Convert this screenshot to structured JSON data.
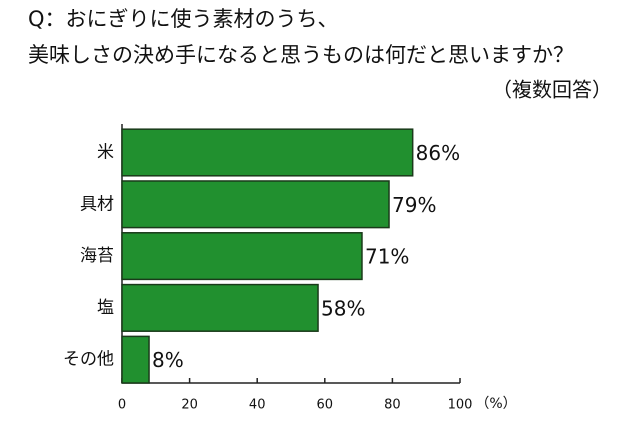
{
  "chart_data": {
    "type": "barh",
    "title": [
      "Q：おにぎりに使う素材のうち、",
      "美味しさの決め手になると思うものは何だと思いますか？"
    ],
    "subtitle": "（複数回答）",
    "x_label": "（%）",
    "categories": [
      "米",
      "具材",
      "海苔",
      "塩",
      "その他"
    ],
    "values": [
      86,
      79,
      71,
      58,
      8
    ],
    "value_labels": [
      "86%",
      "79%",
      "71%",
      "58%",
      "8%"
    ],
    "color": "#21902f",
    "xlim": [
      0,
      100
    ],
    "xticks": [
      0,
      20,
      40,
      60,
      80,
      100
    ],
    "grid": false
  }
}
